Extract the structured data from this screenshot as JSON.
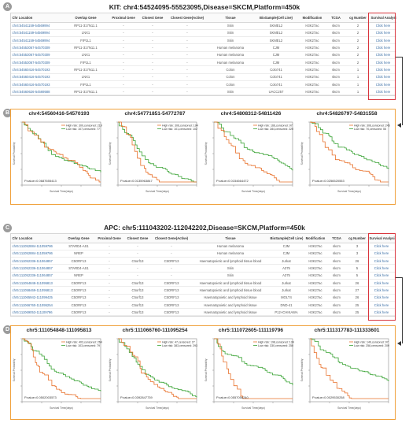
{
  "panels": [
    "A",
    "B",
    "C",
    "D"
  ],
  "sectionA": {
    "title": "KIT: chr4:54524095-55523095,Disease=SKCM,Platform=450k",
    "columns": [
      "Chr Location",
      "Overlap Gene",
      "Proximal Gene",
      "Closest Gene",
      "Closest Gene(Active)",
      "Tissue",
      "BioSample(Cell Line)",
      "Modification",
      "TCGA",
      "cg Number",
      "Survival Analysis"
    ],
    "rows": [
      [
        "chr4:54541159-54569994",
        "RP11-317N11.1",
        "-",
        "-",
        "-",
        "Skin",
        "SKMEL2",
        "H3K27ac",
        "skcm",
        "2",
        "Click here"
      ],
      [
        "chr4:54541159-54569994",
        "LNX1",
        "-",
        "-",
        "-",
        "Skin",
        "SKMEL2",
        "H3K27ac",
        "skcm",
        "2",
        "Click here"
      ],
      [
        "chr4:54541159-54569994",
        "FIP1L1",
        "-",
        "-",
        "-",
        "Skin",
        "SKMEL2",
        "H3K27ac",
        "skcm",
        "2",
        "Click here"
      ],
      [
        "chr4:54553067-54570309",
        "RP11-317N11.1",
        "-",
        "-",
        "-",
        "Human melanoma",
        "CJM",
        "H3K27ac",
        "skcm",
        "2",
        "Click here"
      ],
      [
        "chr4:54553067-54570309",
        "LNX1",
        "-",
        "-",
        "-",
        "Human melanoma",
        "CJM",
        "H3K27ac",
        "skcm",
        "2",
        "Click here"
      ],
      [
        "chr4:54553067-54570309",
        "FIP1L1",
        "-",
        "-",
        "-",
        "Human melanoma",
        "CJM",
        "H3K27ac",
        "skcm",
        "2",
        "Click here"
      ],
      [
        "chr4:54560416-54570193",
        "RP11-317N11.1",
        "-",
        "-",
        "-",
        "Colon",
        "Colo741",
        "H3K27ac",
        "skcm",
        "1",
        "Click here"
      ],
      [
        "chr4:54560416-54570193",
        "LNX1",
        "-",
        "-",
        "-",
        "Colon",
        "Colo741",
        "H3K27ac",
        "skcm",
        "1",
        "Click here"
      ],
      [
        "chr4:54560416-54570193",
        "FIP1L1",
        "-",
        "-",
        "-",
        "Colon",
        "Colo741",
        "H3K27ac",
        "skcm",
        "1",
        "Click here"
      ],
      [
        "chr4:54560626-54569588",
        "RP11-317N11.1",
        "-",
        "-",
        "-",
        "Skin",
        "UACC257",
        "H3K27ac",
        "skcm",
        "1",
        "Click here"
      ]
    ]
  },
  "sectionB": {
    "plots": [
      {
        "title": "chr4:54560416-54570193",
        "legend_high": "High risk: 300,censored: 219",
        "legend_low": "Low risk: 107,censored: 77",
        "pvalue": "P.value=0.0687655413"
      },
      {
        "title": "chr4:54771851-54772787",
        "legend_high": "High risk: 306,censored: 194",
        "legend_low": "Low risk: 101,censored: 102",
        "pvalue": "P.value=0.0135963847"
      },
      {
        "title": "chr4:54808312-54811426",
        "legend_high": "High risk: 166,censored: 97",
        "legend_low": "Low risk: 284,censored: 220",
        "pvalue": "P.value=0.0154664472"
      },
      {
        "title": "chr4:54826797-54831558",
        "legend_high": "High risk: 306,censored: 245",
        "legend_low": "Low risk: 70,censored: 55",
        "pvalue": "P.value=0.0256520553"
      }
    ],
    "ylabel": "Survival Probability",
    "xlabel": "Survival Time(days)"
  },
  "sectionC": {
    "title": "APC: chr5:111043202-112042202,Disease=SKCM,Platform=450k",
    "columns": [
      "Chr Location",
      "Overlap Gene",
      "Proximal Gene",
      "Closest Gene",
      "Closest Gene(Active)",
      "Tissue",
      "BioSample(Cell Line)",
      "Modification",
      "TCGA",
      "cg Number",
      "Survival Analysis"
    ],
    "rows": [
      [
        "chr5:111052884-111059786",
        "STARD4-AS1",
        "-",
        "-",
        "-",
        "Human melanoma",
        "CJM",
        "H3K27ac",
        "skcm",
        "3",
        "Click here"
      ],
      [
        "chr5:111052884-111059786",
        "NREP",
        "-",
        "-",
        "-",
        "Human melanoma",
        "CJM",
        "H3K27ac",
        "skcm",
        "3",
        "Click here"
      ],
      [
        "chr5:111052336-111064857",
        "C5ORF13",
        "-",
        "C5orf13",
        "C5ORF13",
        "Haematopoietic and lymphoid tissue blood",
        "Jurkat",
        "H3K27ac",
        "skcm",
        "26",
        "Click here"
      ],
      [
        "chr5:111052336-111064857",
        "STARD4-AS1",
        "-",
        "-",
        "-",
        "Skin",
        "A375",
        "H3K27ac",
        "skcm",
        "5",
        "Click here"
      ],
      [
        "chr5:111052336-111064857",
        "NREP",
        "-",
        "-",
        "-",
        "Skin",
        "A375",
        "H3K27ac",
        "skcm",
        "5",
        "Click here"
      ],
      [
        "chr5:111054848-111095813",
        "C5ORF13",
        "-",
        "C5orf13",
        "C5ORF13",
        "Haematopoietic and lymphoid tissue blood",
        "Jurkat",
        "H3K27ac",
        "skcm",
        "26",
        "Click here"
      ],
      [
        "chr5:111058469-111095813",
        "C5ORF13",
        "-",
        "C5orf13",
        "C5ORF13",
        "Haematopoietic and lymphoid tissue blood",
        "Jurkat",
        "H3K27ac",
        "skcm",
        "27",
        "Click here"
      ],
      [
        "chr5:111065942-111099425",
        "C5ORF13",
        "-",
        "C5orf13",
        "C5ORF13",
        "Haematopoietic and lymphoid tissue",
        "MOLT4",
        "H3K27ac",
        "skcm",
        "26",
        "Click here"
      ],
      [
        "chr5:111066760-111095254",
        "C5ORF13",
        "-",
        "C5orf13",
        "C5ORF13",
        "Haematopoietic and lymphoid tissue",
        "DND-41",
        "H3K27ac",
        "skcm",
        "25",
        "Click here"
      ],
      [
        "chr5:111069053-111109796",
        "C5ORF13",
        "-",
        "C5orf13",
        "C5ORF13",
        "Haematopoietic and lymphoid tissue",
        "P12-ICHIKAWA",
        "H3K27ac",
        "skcm",
        "25",
        "Click here"
      ]
    ]
  },
  "sectionD": {
    "plots": [
      {
        "title": "chr5:111054848-111095813",
        "legend_high": "High risk: 403,censored: 264",
        "legend_low": "Low risk: 103,censored: 79",
        "pvalue": "P.value=0.0502003573"
      },
      {
        "title": "chr5:111066760-111095254",
        "legend_high": "High risk: 47,censored: 27",
        "legend_low": "Low risk: 383,censored: 293",
        "pvalue": "P.value=0.0392847739"
      },
      {
        "title": "chr5:111072605-111119796",
        "legend_high": "High risk: 198,censored: 134",
        "legend_low": "Low risk: 330,censored: 250",
        "pvalue": "P.value=0.0557056240"
      },
      {
        "title": "chr5:111317783-111333601",
        "legend_high": "High risk: 149,censored: 97",
        "legend_low": "Low risk: 258,censored: 209",
        "pvalue": "P.value=0.0029530258"
      }
    ],
    "ylabel": "Survival Probability",
    "xlabel": "Survival Time(days)"
  },
  "colors": {
    "high_risk": "#e8702a",
    "low_risk": "#3aa335",
    "link": "#3a6ea5",
    "frame": "#f0a13c",
    "highlight": "#d9363e"
  }
}
